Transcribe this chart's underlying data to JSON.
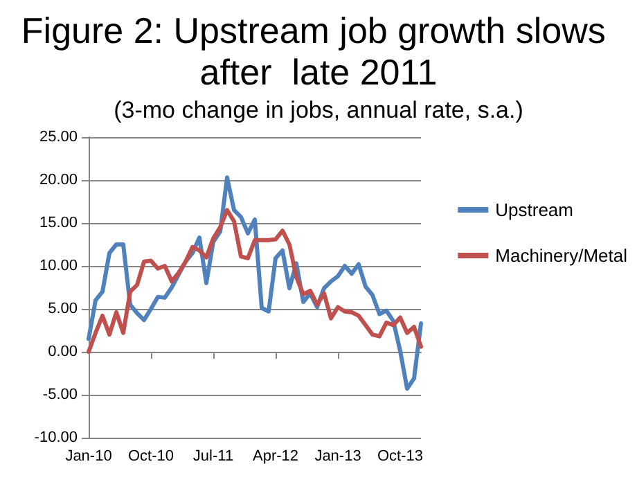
{
  "chart_data": {
    "type": "line",
    "title": "Figure 2: Upstream job growth slows after  late 2011",
    "subtitle": "(3-mo change in jobs, annual rate, s.a.)",
    "categories": [
      "Jan-10",
      null,
      null,
      null,
      null,
      null,
      null,
      null,
      null,
      "Oct-10",
      null,
      null,
      null,
      null,
      null,
      null,
      null,
      null,
      "Jul-11",
      null,
      null,
      null,
      null,
      null,
      null,
      null,
      null,
      "Apr-12",
      null,
      null,
      null,
      null,
      null,
      null,
      null,
      null,
      "Jan-13",
      null,
      null,
      null,
      null,
      null,
      null,
      null,
      null,
      "Oct-13",
      null,
      null,
      null
    ],
    "series": [
      {
        "name": "Upstream",
        "color": "#4f81bd",
        "values": [
          1.5,
          6,
          7,
          11.5,
          12.5,
          12.5,
          5.5,
          4.5,
          3.7,
          5,
          6.4,
          6.3,
          7.5,
          9,
          10.5,
          11.5,
          13.3,
          8,
          12.8,
          14,
          20.3,
          16.5,
          15.7,
          13.8,
          15.4,
          5.1,
          4.7,
          10.9,
          11.8,
          7.4,
          10.3,
          5.8,
          6.8,
          5.2,
          7.4,
          8.2,
          8.8,
          10,
          9.1,
          10.2,
          7.6,
          6.6,
          4.4,
          4.8,
          3.6,
          0.1,
          -4.3,
          -3.1,
          3.3
        ]
      },
      {
        "name": "Machinery/Metal",
        "color": "#c0504d",
        "values": [
          0,
          2.2,
          4.2,
          2,
          4.6,
          2.2,
          7,
          7.8,
          10.5,
          10.6,
          9.7,
          10,
          8.2,
          9.2,
          10.5,
          12.2,
          11.8,
          11,
          13.2,
          14.5,
          16.5,
          15.2,
          11.1,
          10.9,
          13,
          13,
          13,
          13.1,
          14.1,
          12.5,
          8.7,
          6.7,
          7.1,
          5.5,
          6.8,
          3.9,
          5.2,
          4.7,
          4.6,
          4.2,
          3.1,
          2,
          1.8,
          3.4,
          3.1,
          4,
          2.2,
          2.9,
          0.6
        ]
      }
    ],
    "ylim": [
      -10,
      25
    ],
    "yticks": [
      {
        "value": -10,
        "label": "-10.00"
      },
      {
        "value": -5,
        "label": "-5.00"
      },
      {
        "value": 0,
        "label": "0.00"
      },
      {
        "value": 5,
        "label": "5.00"
      },
      {
        "value": 10,
        "label": "10.00"
      },
      {
        "value": 15,
        "label": "15.00"
      },
      {
        "value": 20,
        "label": "20.00"
      },
      {
        "value": 25,
        "label": "25.00"
      }
    ],
    "grid": "y",
    "legend": "right",
    "marker": "none",
    "line_style": "solid"
  }
}
